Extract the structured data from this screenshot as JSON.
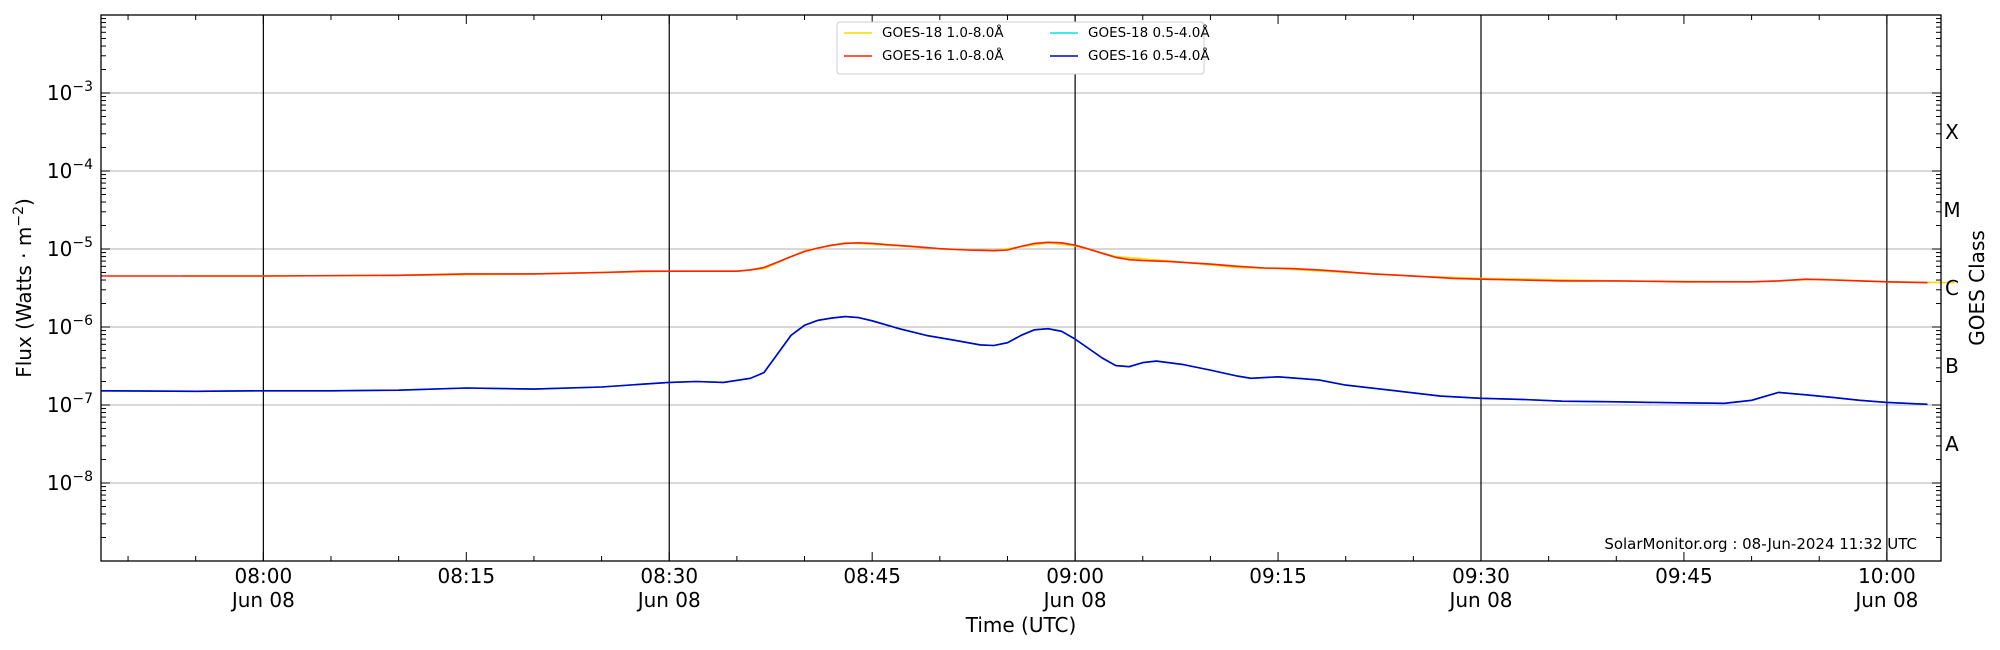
{
  "chart_data": {
    "type": "line",
    "xlabel": "Time (UTC)",
    "ylabel_main": "Flux (Watts · m",
    "ylabel_sup": "−2",
    "ylabel_close": ")",
    "ylabel_right": "GOES Class",
    "yscale": "log",
    "ylim": [
      1e-09,
      0.01
    ],
    "xlim": [
      "07:48",
      "10:04"
    ],
    "grid": "horizontal at decades",
    "legend_placement": "top-center",
    "x_major_ticks": [
      {
        "time": "08:00",
        "label": "08:00",
        "date": "Jun 08"
      },
      {
        "time": "08:15",
        "label": "08:15",
        "date": ""
      },
      {
        "time": "08:30",
        "label": "08:30",
        "date": "Jun 08"
      },
      {
        "time": "08:45",
        "label": "08:45",
        "date": ""
      },
      {
        "time": "09:00",
        "label": "09:00",
        "date": "Jun 08"
      },
      {
        "time": "09:15",
        "label": "09:15",
        "date": ""
      },
      {
        "time": "09:30",
        "label": "09:30",
        "date": "Jun 08"
      },
      {
        "time": "09:45",
        "label": "09:45",
        "date": ""
      },
      {
        "time": "10:00",
        "label": "10:00",
        "date": "Jun 08"
      }
    ],
    "vertical_lines": [
      "08:00",
      "08:30",
      "09:00",
      "09:30",
      "10:00"
    ],
    "y_ticks": [
      {
        "value": 0.001,
        "base": "10",
        "exp": "−3"
      },
      {
        "value": 0.0001,
        "base": "10",
        "exp": "−4"
      },
      {
        "value": 1e-05,
        "base": "10",
        "exp": "−5"
      },
      {
        "value": 1e-06,
        "base": "10",
        "exp": "−6"
      },
      {
        "value": 1e-07,
        "base": "10",
        "exp": "−7"
      },
      {
        "value": 1e-08,
        "base": "10",
        "exp": "−8"
      }
    ],
    "goes_classes": [
      {
        "label": "X",
        "value": 0.0003162
      },
      {
        "label": "M",
        "value": 3.162e-05
      },
      {
        "label": "C",
        "value": 3.162e-06
      },
      {
        "label": "B",
        "value": 3.162e-07
      },
      {
        "label": "A",
        "value": 3.162e-08
      }
    ],
    "legend": [
      {
        "label": "GOES-18 1.0-8.0Å",
        "color": "#ffd700"
      },
      {
        "label": "GOES-18 0.5-4.0Å",
        "color": "#00e5ee"
      },
      {
        "label": "GOES-16 1.0-8.0Å",
        "color": "#ff2200"
      },
      {
        "label": "GOES-16 0.5-4.0Å",
        "color": "#0000cc"
      }
    ],
    "series": [
      {
        "name": "GOES-18 1.0-8.0Å",
        "color": "#ffd700",
        "points": [
          [
            "07:54",
            4.5e-06
          ],
          [
            "08:00",
            4.5e-06
          ],
          [
            "08:10",
            4.6e-06
          ],
          [
            "08:20",
            4.8e-06
          ],
          [
            "08:30",
            5.2e-06
          ],
          [
            "08:35",
            5.2e-06
          ],
          [
            "08:37",
            5.6e-06
          ],
          [
            "08:40",
            9.5e-06
          ],
          [
            "08:43",
            1.2e-05
          ],
          [
            "08:47",
            1.1e-05
          ],
          [
            "08:50",
            1e-05
          ],
          [
            "08:54",
            9.5e-06
          ],
          [
            "08:58",
            1.2e-05
          ],
          [
            "09:00",
            1.1e-05
          ],
          [
            "09:03",
            8e-06
          ],
          [
            "09:07",
            7e-06
          ],
          [
            "09:12",
            5.8e-06
          ],
          [
            "09:15",
            5.6e-06
          ],
          [
            "09:20",
            5e-06
          ],
          [
            "09:25",
            4.5e-06
          ],
          [
            "09:30",
            4.2e-06
          ],
          [
            "09:40",
            3.9e-06
          ],
          [
            "09:50",
            3.8e-06
          ],
          [
            "09:55",
            4.1e-06
          ],
          [
            "10:00",
            3.8e-06
          ],
          [
            "10:05",
            3.7e-06
          ]
        ]
      },
      {
        "name": "GOES-16 1.0-8.0Å",
        "color": "#ff2200",
        "points": [
          [
            "07:48",
            4.5e-06
          ],
          [
            "07:55",
            4.5e-06
          ],
          [
            "08:00",
            4.5e-06
          ],
          [
            "08:10",
            4.6e-06
          ],
          [
            "08:15",
            4.8e-06
          ],
          [
            "08:20",
            4.8e-06
          ],
          [
            "08:25",
            5e-06
          ],
          [
            "08:28",
            5.2e-06
          ],
          [
            "08:32",
            5.2e-06
          ],
          [
            "08:35",
            5.2e-06
          ],
          [
            "08:36",
            5.4e-06
          ],
          [
            "08:37",
            5.8e-06
          ],
          [
            "08:38",
            6.8e-06
          ],
          [
            "08:39",
            8e-06
          ],
          [
            "08:40",
            9.3e-06
          ],
          [
            "08:41",
            1.03e-05
          ],
          [
            "08:42",
            1.12e-05
          ],
          [
            "08:43",
            1.18e-05
          ],
          [
            "08:44",
            1.2e-05
          ],
          [
            "08:45",
            1.18e-05
          ],
          [
            "08:46",
            1.14e-05
          ],
          [
            "08:48",
            1.08e-05
          ],
          [
            "08:50",
            1.01e-05
          ],
          [
            "08:52",
            9.7e-06
          ],
          [
            "08:54",
            9.5e-06
          ],
          [
            "08:55",
            9.7e-06
          ],
          [
            "08:56",
            1.08e-05
          ],
          [
            "08:57",
            1.18e-05
          ],
          [
            "08:58",
            1.22e-05
          ],
          [
            "08:59",
            1.2e-05
          ],
          [
            "09:00",
            1.12e-05
          ],
          [
            "09:01",
            1e-05
          ],
          [
            "09:02",
            8.8e-06
          ],
          [
            "09:03",
            7.8e-06
          ],
          [
            "09:04",
            7.3e-06
          ],
          [
            "09:05",
            7.1e-06
          ],
          [
            "09:07",
            6.9e-06
          ],
          [
            "09:10",
            6.4e-06
          ],
          [
            "09:12",
            6e-06
          ],
          [
            "09:14",
            5.7e-06
          ],
          [
            "09:16",
            5.6e-06
          ],
          [
            "09:18",
            5.4e-06
          ],
          [
            "09:20",
            5.1e-06
          ],
          [
            "09:22",
            4.8e-06
          ],
          [
            "09:24",
            4.6e-06
          ],
          [
            "09:26",
            4.4e-06
          ],
          [
            "09:28",
            4.2e-06
          ],
          [
            "09:30",
            4.1e-06
          ],
          [
            "09:33",
            4e-06
          ],
          [
            "09:36",
            3.9e-06
          ],
          [
            "09:40",
            3.9e-06
          ],
          [
            "09:45",
            3.8e-06
          ],
          [
            "09:48",
            3.8e-06
          ],
          [
            "09:50",
            3.8e-06
          ],
          [
            "09:52",
            3.9e-06
          ],
          [
            "09:54",
            4.1e-06
          ],
          [
            "09:56",
            4e-06
          ],
          [
            "09:58",
            3.9e-06
          ],
          [
            "10:00",
            3.8e-06
          ],
          [
            "10:03",
            3.7e-06
          ]
        ]
      },
      {
        "name": "GOES-18 0.5-4.0Å",
        "color": "#00e5ee",
        "points": [
          [
            "07:48",
            1.52e-07
          ],
          [
            "07:55",
            1.5e-07
          ],
          [
            "08:00",
            1.52e-07
          ],
          [
            "08:05",
            1.52e-07
          ],
          [
            "08:10",
            1.55e-07
          ],
          [
            "08:15",
            1.65e-07
          ],
          [
            "08:20",
            1.6e-07
          ],
          [
            "08:25",
            1.7e-07
          ],
          [
            "08:28",
            1.85e-07
          ],
          [
            "08:30",
            1.95e-07
          ],
          [
            "08:32",
            2e-07
          ],
          [
            "08:34",
            1.95e-07
          ],
          [
            "08:36",
            2.2e-07
          ],
          [
            "08:37",
            2.6e-07
          ],
          [
            "08:38",
            4.5e-07
          ],
          [
            "08:39",
            7.8e-07
          ],
          [
            "08:40",
            1.05e-06
          ],
          [
            "08:41",
            1.22e-06
          ],
          [
            "08:42",
            1.3e-06
          ],
          [
            "08:43",
            1.36e-06
          ],
          [
            "08:44",
            1.32e-06
          ],
          [
            "08:45",
            1.2e-06
          ],
          [
            "08:47",
            9.5e-07
          ],
          [
            "08:49",
            7.8e-07
          ],
          [
            "08:51",
            6.8e-07
          ],
          [
            "08:53",
            5.9e-07
          ],
          [
            "08:54",
            5.8e-07
          ],
          [
            "08:55",
            6.3e-07
          ],
          [
            "08:56",
            7.8e-07
          ],
          [
            "08:57",
            9.2e-07
          ],
          [
            "08:58",
            9.5e-07
          ],
          [
            "08:59",
            8.8e-07
          ],
          [
            "09:00",
            7e-07
          ],
          [
            "09:01",
            5.3e-07
          ],
          [
            "09:02",
            4e-07
          ],
          [
            "09:03",
            3.2e-07
          ],
          [
            "09:04",
            3.1e-07
          ],
          [
            "09:05",
            3.5e-07
          ],
          [
            "09:06",
            3.65e-07
          ],
          [
            "09:08",
            3.3e-07
          ],
          [
            "09:10",
            2.8e-07
          ],
          [
            "09:12",
            2.35e-07
          ],
          [
            "09:13",
            2.2e-07
          ],
          [
            "09:15",
            2.3e-07
          ],
          [
            "09:18",
            2.1e-07
          ],
          [
            "09:20",
            1.8e-07
          ],
          [
            "09:24",
            1.5e-07
          ],
          [
            "09:27",
            1.3e-07
          ],
          [
            "09:30",
            1.22e-07
          ],
          [
            "09:33",
            1.18e-07
          ],
          [
            "09:36",
            1.12e-07
          ],
          [
            "09:40",
            1.1e-07
          ],
          [
            "09:44",
            1.07e-07
          ],
          [
            "09:48",
            1.05e-07
          ],
          [
            "09:50",
            1.15e-07
          ],
          [
            "09:52",
            1.45e-07
          ],
          [
            "09:54",
            1.35e-07
          ],
          [
            "09:56",
            1.25e-07
          ],
          [
            "09:58",
            1.15e-07
          ],
          [
            "10:00",
            1.08e-07
          ],
          [
            "10:03",
            1.02e-07
          ]
        ]
      },
      {
        "name": "GOES-16 0.5-4.0Å",
        "color": "#0000cc",
        "points": [
          [
            "07:48",
            1.52e-07
          ],
          [
            "07:55",
            1.5e-07
          ],
          [
            "08:00",
            1.52e-07
          ],
          [
            "08:05",
            1.52e-07
          ],
          [
            "08:10",
            1.55e-07
          ],
          [
            "08:15",
            1.65e-07
          ],
          [
            "08:20",
            1.6e-07
          ],
          [
            "08:25",
            1.7e-07
          ],
          [
            "08:28",
            1.85e-07
          ],
          [
            "08:30",
            1.95e-07
          ],
          [
            "08:32",
            2e-07
          ],
          [
            "08:34",
            1.95e-07
          ],
          [
            "08:36",
            2.2e-07
          ],
          [
            "08:37",
            2.6e-07
          ],
          [
            "08:38",
            4.5e-07
          ],
          [
            "08:39",
            7.8e-07
          ],
          [
            "08:40",
            1.05e-06
          ],
          [
            "08:41",
            1.22e-06
          ],
          [
            "08:42",
            1.3e-06
          ],
          [
            "08:43",
            1.36e-06
          ],
          [
            "08:44",
            1.32e-06
          ],
          [
            "08:45",
            1.2e-06
          ],
          [
            "08:47",
            9.5e-07
          ],
          [
            "08:49",
            7.8e-07
          ],
          [
            "08:51",
            6.8e-07
          ],
          [
            "08:53",
            5.9e-07
          ],
          [
            "08:54",
            5.8e-07
          ],
          [
            "08:55",
            6.3e-07
          ],
          [
            "08:56",
            7.8e-07
          ],
          [
            "08:57",
            9.2e-07
          ],
          [
            "08:58",
            9.5e-07
          ],
          [
            "08:59",
            8.8e-07
          ],
          [
            "09:00",
            7e-07
          ],
          [
            "09:01",
            5.3e-07
          ],
          [
            "09:02",
            4e-07
          ],
          [
            "09:03",
            3.2e-07
          ],
          [
            "09:04",
            3.1e-07
          ],
          [
            "09:05",
            3.5e-07
          ],
          [
            "09:06",
            3.65e-07
          ],
          [
            "09:08",
            3.3e-07
          ],
          [
            "09:10",
            2.8e-07
          ],
          [
            "09:12",
            2.35e-07
          ],
          [
            "09:13",
            2.2e-07
          ],
          [
            "09:15",
            2.3e-07
          ],
          [
            "09:18",
            2.1e-07
          ],
          [
            "09:20",
            1.8e-07
          ],
          [
            "09:24",
            1.5e-07
          ],
          [
            "09:27",
            1.3e-07
          ],
          [
            "09:30",
            1.22e-07
          ],
          [
            "09:33",
            1.18e-07
          ],
          [
            "09:36",
            1.12e-07
          ],
          [
            "09:40",
            1.1e-07
          ],
          [
            "09:44",
            1.07e-07
          ],
          [
            "09:48",
            1.05e-07
          ],
          [
            "09:50",
            1.15e-07
          ],
          [
            "09:52",
            1.45e-07
          ],
          [
            "09:54",
            1.35e-07
          ],
          [
            "09:56",
            1.25e-07
          ],
          [
            "09:58",
            1.15e-07
          ],
          [
            "10:00",
            1.08e-07
          ],
          [
            "10:03",
            1.02e-07
          ]
        ]
      }
    ],
    "credit": "SolarMonitor.org : 08-Jun-2024 11:32 UTC"
  }
}
